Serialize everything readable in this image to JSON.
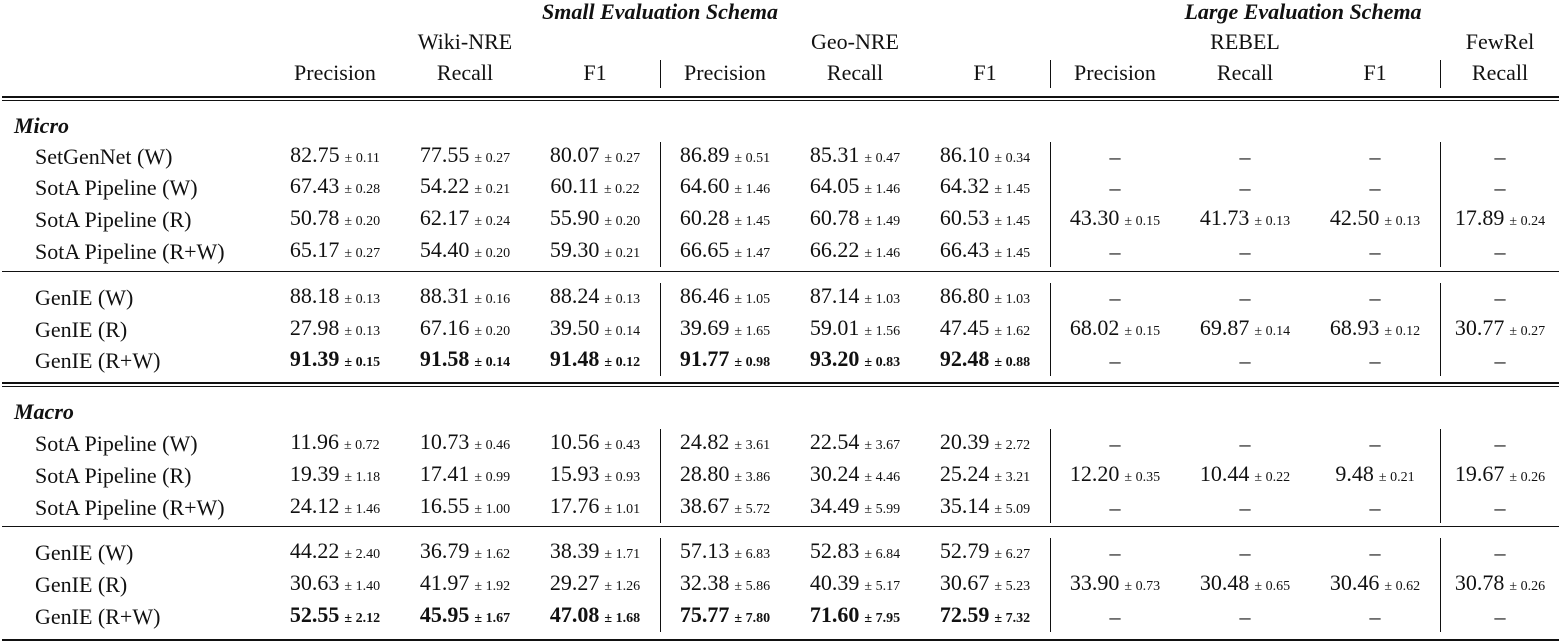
{
  "header": {
    "groups": [
      "Small Evaluation Schema",
      "Large Evaluation Schema"
    ],
    "datasets": [
      "Wiki-NRE",
      "Geo-NRE",
      "REBEL",
      "FewRel"
    ],
    "columns": [
      "Precision",
      "Recall",
      "F1",
      "Precision",
      "Recall",
      "F1",
      "Precision",
      "Recall",
      "F1",
      "Recall"
    ]
  },
  "sections": [
    {
      "title": "Micro",
      "blocks": [
        {
          "rows": [
            {
              "name": "SetGenNet (W)",
              "cells": [
                [
                  "82.75",
                  "± 0.11"
                ],
                [
                  "77.55",
                  "± 0.27"
                ],
                [
                  "80.07",
                  "± 0.27"
                ],
                [
                  "86.89",
                  "± 0.51"
                ],
                [
                  "85.31",
                  "± 0.47"
                ],
                [
                  "86.10",
                  "± 0.34"
                ],
                "–",
                "–",
                "–",
                "–"
              ]
            },
            {
              "name": "SotA Pipeline (W)",
              "cells": [
                [
                  "67.43",
                  "± 0.28"
                ],
                [
                  "54.22",
                  "± 0.21"
                ],
                [
                  "60.11",
                  "± 0.22"
                ],
                [
                  "64.60",
                  "± 1.46"
                ],
                [
                  "64.05",
                  "± 1.46"
                ],
                [
                  "64.32",
                  "± 1.45"
                ],
                "–",
                "–",
                "–",
                "–"
              ]
            },
            {
              "name": "SotA Pipeline (R)",
              "cells": [
                [
                  "50.78",
                  "± 0.20"
                ],
                [
                  "62.17",
                  "± 0.24"
                ],
                [
                  "55.90",
                  "± 0.20"
                ],
                [
                  "60.28",
                  "± 1.45"
                ],
                [
                  "60.78",
                  "± 1.49"
                ],
                [
                  "60.53",
                  "± 1.45"
                ],
                [
                  "43.30",
                  "± 0.15"
                ],
                [
                  "41.73",
                  "± 0.13"
                ],
                [
                  "42.50",
                  "± 0.13"
                ],
                [
                  "17.89",
                  "± 0.24"
                ]
              ]
            },
            {
              "name": "SotA Pipeline (R+W)",
              "cells": [
                [
                  "65.17",
                  "± 0.27"
                ],
                [
                  "54.40",
                  "± 0.20"
                ],
                [
                  "59.30",
                  "± 0.21"
                ],
                [
                  "66.65",
                  "± 1.47"
                ],
                [
                  "66.22",
                  "± 1.46"
                ],
                [
                  "66.43",
                  "± 1.45"
                ],
                "–",
                "–",
                "–",
                "–"
              ]
            }
          ]
        },
        {
          "rows": [
            {
              "name": "GenIE (W)",
              "cells": [
                [
                  "88.18",
                  "± 0.13"
                ],
                [
                  "88.31",
                  "± 0.16"
                ],
                [
                  "88.24",
                  "± 0.13"
                ],
                [
                  "86.46",
                  "± 1.05"
                ],
                [
                  "87.14",
                  "± 1.03"
                ],
                [
                  "86.80",
                  "± 1.03"
                ],
                "–",
                "–",
                "–",
                "–"
              ]
            },
            {
              "name": "GenIE (R)",
              "cells": [
                [
                  "27.98",
                  "± 0.13"
                ],
                [
                  "67.16",
                  "± 0.20"
                ],
                [
                  "39.50",
                  "± 0.14"
                ],
                [
                  "39.69",
                  "± 1.65"
                ],
                [
                  "59.01",
                  "± 1.56"
                ],
                [
                  "47.45",
                  "± 1.62"
                ],
                [
                  "68.02",
                  "± 0.15"
                ],
                [
                  "69.87",
                  "± 0.14"
                ],
                [
                  "68.93",
                  "± 0.12"
                ],
                [
                  "30.77",
                  "± 0.27"
                ]
              ]
            },
            {
              "name": "GenIE (R+W)",
              "bold": true,
              "cells": [
                [
                  "91.39",
                  "± 0.15"
                ],
                [
                  "91.58",
                  "± 0.14"
                ],
                [
                  "91.48",
                  "± 0.12"
                ],
                [
                  "91.77",
                  "± 0.98"
                ],
                [
                  "93.20",
                  "± 0.83"
                ],
                [
                  "92.48",
                  "± 0.88"
                ],
                "–",
                "–",
                "–",
                "–"
              ]
            }
          ]
        }
      ]
    },
    {
      "title": "Macro",
      "blocks": [
        {
          "rows": [
            {
              "name": "SotA Pipeline (W)",
              "cells": [
                [
                  "11.96",
                  "± 0.72"
                ],
                [
                  "10.73",
                  "± 0.46"
                ],
                [
                  "10.56",
                  "± 0.43"
                ],
                [
                  "24.82",
                  "± 3.61"
                ],
                [
                  "22.54",
                  "± 3.67"
                ],
                [
                  "20.39",
                  "± 2.72"
                ],
                "–",
                "–",
                "–",
                "–"
              ]
            },
            {
              "name": "SotA Pipeline (R)",
              "cells": [
                [
                  "19.39",
                  "± 1.18"
                ],
                [
                  "17.41",
                  "± 0.99"
                ],
                [
                  "15.93",
                  "± 0.93"
                ],
                [
                  "28.80",
                  "± 3.86"
                ],
                [
                  "30.24",
                  "± 4.46"
                ],
                [
                  "25.24",
                  "± 3.21"
                ],
                [
                  "12.20",
                  "± 0.35"
                ],
                [
                  "10.44",
                  "± 0.22"
                ],
                [
                  "9.48",
                  "± 0.21"
                ],
                [
                  "19.67",
                  "± 0.26"
                ]
              ]
            },
            {
              "name": "SotA Pipeline (R+W)",
              "cells": [
                [
                  "24.12",
                  "± 1.46"
                ],
                [
                  "16.55",
                  "± 1.00"
                ],
                [
                  "17.76",
                  "± 1.01"
                ],
                [
                  "38.67",
                  "± 5.72"
                ],
                [
                  "34.49",
                  "± 5.99"
                ],
                [
                  "35.14",
                  "± 5.09"
                ],
                "–",
                "–",
                "–",
                "–"
              ]
            }
          ]
        },
        {
          "rows": [
            {
              "name": "GenIE (W)",
              "cells": [
                [
                  "44.22",
                  "± 2.40"
                ],
                [
                  "36.79",
                  "± 1.62"
                ],
                [
                  "38.39",
                  "± 1.71"
                ],
                [
                  "57.13",
                  "± 6.83"
                ],
                [
                  "52.83",
                  "± 6.84"
                ],
                [
                  "52.79",
                  "± 6.27"
                ],
                "–",
                "–",
                "–",
                "–"
              ]
            },
            {
              "name": "GenIE (R)",
              "cells": [
                [
                  "30.63",
                  "± 1.40"
                ],
                [
                  "41.97",
                  "± 1.92"
                ],
                [
                  "29.27",
                  "± 1.26"
                ],
                [
                  "32.38",
                  "± 5.86"
                ],
                [
                  "40.39",
                  "± 5.17"
                ],
                [
                  "30.67",
                  "± 5.23"
                ],
                [
                  "33.90",
                  "± 0.73"
                ],
                [
                  "30.48",
                  "± 0.65"
                ],
                [
                  "30.46",
                  "± 0.62"
                ],
                [
                  "30.78",
                  "± 0.26"
                ]
              ]
            },
            {
              "name": "GenIE (R+W)",
              "bold": true,
              "cells": [
                [
                  "52.55",
                  "± 2.12"
                ],
                [
                  "45.95",
                  "± 1.67"
                ],
                [
                  "47.08",
                  "± 1.68"
                ],
                [
                  "75.77",
                  "± 7.80"
                ],
                [
                  "71.60",
                  "± 7.95"
                ],
                [
                  "72.59",
                  "± 7.32"
                ],
                "–",
                "–",
                "–",
                "–"
              ]
            }
          ]
        }
      ]
    }
  ]
}
